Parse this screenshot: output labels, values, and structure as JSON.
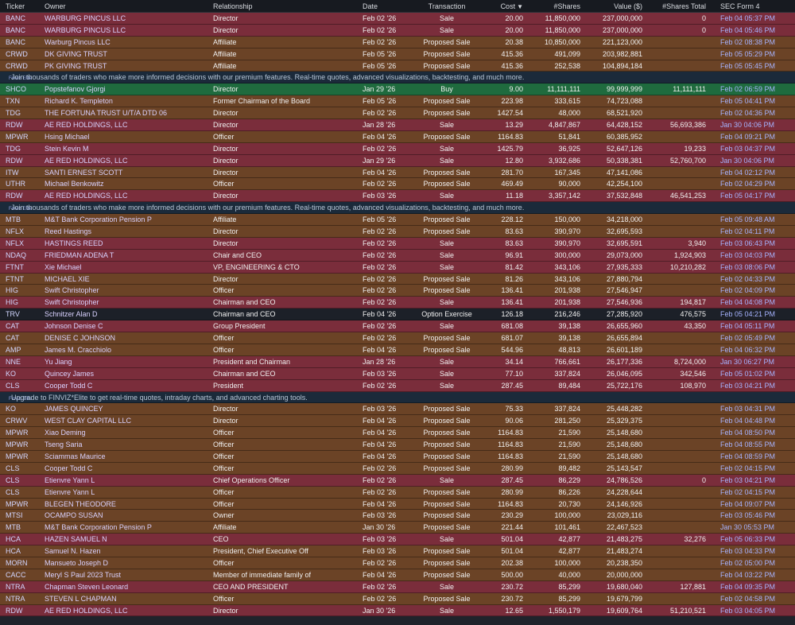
{
  "columns": {
    "ticker": "Ticker",
    "owner": "Owner",
    "relationship": "Relationship",
    "date": "Date",
    "transaction": "Transaction",
    "cost": "Cost",
    "shares": "#Shares",
    "value": "Value ($)",
    "shares_total": "#Shares Total",
    "sec": "SEC Form 4"
  },
  "colors": {
    "sale": "#7a2d3b",
    "proposed_sale": "#6b4326",
    "buy": "#1f6b3e",
    "option_exercise": "#1c2028"
  },
  "sort_icon": "sort-desc-icon",
  "rows": [
    {
      "kind": "sale",
      "ticker": "BANC",
      "owner": "WARBURG PINCUS LLC",
      "rel": "Director",
      "date": "Feb 02 '26",
      "trans": "Sale",
      "cost": "20.00",
      "shares": "11,850,000",
      "value": "237,000,000",
      "total": "0",
      "sec": "Feb 04 05:37 PM"
    },
    {
      "kind": "sale",
      "ticker": "BANC",
      "owner": "WARBURG PINCUS LLC",
      "rel": "Director",
      "date": "Feb 02 '26",
      "trans": "Sale",
      "cost": "20.00",
      "shares": "11,850,000",
      "value": "237,000,000",
      "total": "0",
      "sec": "Feb 04 05:46 PM"
    },
    {
      "kind": "prop",
      "ticker": "BANC",
      "owner": "Warburg Pincus LLC",
      "rel": "Affiliate",
      "date": "Feb 02 '26",
      "trans": "Proposed Sale",
      "cost": "20.38",
      "shares": "10,850,000",
      "value": "221,123,000",
      "total": "",
      "sec": "Feb 02 08:38 PM"
    },
    {
      "kind": "prop",
      "ticker": "CRWD",
      "owner": "DK GIVING TRUST",
      "rel": "Affiliate",
      "date": "Feb 05 '26",
      "trans": "Proposed Sale",
      "cost": "415.36",
      "shares": "491,099",
      "value": "203,982,881",
      "total": "",
      "sec": "Feb 05 05:29 PM"
    },
    {
      "kind": "prop",
      "ticker": "CRWD",
      "owner": "PK GIVING TRUST",
      "rel": "Affiliate",
      "date": "Feb 05 '26",
      "trans": "Proposed Sale",
      "cost": "415.36",
      "shares": "252,538",
      "value": "104,894,184",
      "total": "",
      "sec": "Feb 05 05:45 PM"
    },
    {
      "kind": "promo",
      "text": "Join thousands of traders who make more informed decisions with our premium features. Real-time quotes, advanced visualizations, backtesting, and much more.",
      "elite": "Finviz Elite"
    },
    {
      "kind": "buy",
      "ticker": "SHCO",
      "owner": "Popstefanov Gjorgi",
      "rel": "Director",
      "date": "Jan 29 '26",
      "trans": "Buy",
      "cost": "9.00",
      "shares": "11,111,111",
      "value": "99,999,999",
      "total": "11,111,111",
      "sec": "Feb 02 06:59 PM"
    },
    {
      "kind": "prop",
      "ticker": "TXN",
      "owner": "Richard K. Templeton",
      "rel": "Former Chairman of the Board",
      "date": "Feb 05 '26",
      "trans": "Proposed Sale",
      "cost": "223.98",
      "shares": "333,615",
      "value": "74,723,088",
      "total": "",
      "sec": "Feb 05 04:41 PM"
    },
    {
      "kind": "prop",
      "ticker": "TDG",
      "owner": "THE FORTUNA TRUST U/T/A DTD 06",
      "rel": "Director",
      "date": "Feb 02 '26",
      "trans": "Proposed Sale",
      "cost": "1427.54",
      "shares": "48,000",
      "value": "68,521,920",
      "total": "",
      "sec": "Feb 02 04:36 PM"
    },
    {
      "kind": "sale",
      "ticker": "RDW",
      "owner": "AE RED HOLDINGS, LLC",
      "rel": "Director",
      "date": "Jan 28 '26",
      "trans": "Sale",
      "cost": "13.29",
      "shares": "4,847,867",
      "value": "64,428,152",
      "total": "56,693,386",
      "sec": "Jan 30 04:06 PM"
    },
    {
      "kind": "prop",
      "ticker": "MPWR",
      "owner": "Hsing Michael",
      "rel": "Officer",
      "date": "Feb 04 '26",
      "trans": "Proposed Sale",
      "cost": "1164.83",
      "shares": "51,841",
      "value": "60,385,952",
      "total": "",
      "sec": "Feb 04 09:21 PM"
    },
    {
      "kind": "sale",
      "ticker": "TDG",
      "owner": "Stein Kevin M",
      "rel": "Director",
      "date": "Feb 02 '26",
      "trans": "Sale",
      "cost": "1425.79",
      "shares": "36,925",
      "value": "52,647,126",
      "total": "19,233",
      "sec": "Feb 03 04:37 PM"
    },
    {
      "kind": "sale",
      "ticker": "RDW",
      "owner": "AE RED HOLDINGS, LLC",
      "rel": "Director",
      "date": "Jan 29 '26",
      "trans": "Sale",
      "cost": "12.80",
      "shares": "3,932,686",
      "value": "50,338,381",
      "total": "52,760,700",
      "sec": "Jan 30 04:06 PM"
    },
    {
      "kind": "prop",
      "ticker": "ITW",
      "owner": "SANTI ERNEST SCOTT",
      "rel": "Director",
      "date": "Feb 04 '26",
      "trans": "Proposed Sale",
      "cost": "281.70",
      "shares": "167,345",
      "value": "47,141,086",
      "total": "",
      "sec": "Feb 04 02:12 PM"
    },
    {
      "kind": "prop",
      "ticker": "UTHR",
      "owner": "Michael Benkowitz",
      "rel": "Officer",
      "date": "Feb 02 '26",
      "trans": "Proposed Sale",
      "cost": "469.49",
      "shares": "90,000",
      "value": "42,254,100",
      "total": "",
      "sec": "Feb 02 04:29 PM"
    },
    {
      "kind": "sale",
      "ticker": "RDW",
      "owner": "AE RED HOLDINGS, LLC",
      "rel": "Director",
      "date": "Feb 03 '26",
      "trans": "Sale",
      "cost": "11.18",
      "shares": "3,357,142",
      "value": "37,532,848",
      "total": "46,541,253",
      "sec": "Feb 05 04:17 PM"
    },
    {
      "kind": "promo",
      "text": "Join thousands of traders who make more informed decisions with our premium features. Real-time quotes, advanced visualizations, backtesting, and much more.",
      "elite": "Finviz Elite"
    },
    {
      "kind": "prop",
      "ticker": "MTB",
      "owner": "M&T Bank Corporation Pension P",
      "rel": "Affiliate",
      "date": "Feb 05 '26",
      "trans": "Proposed Sale",
      "cost": "228.12",
      "shares": "150,000",
      "value": "34,218,000",
      "total": "",
      "sec": "Feb 05 09:48 AM"
    },
    {
      "kind": "prop",
      "ticker": "NFLX",
      "owner": "Reed Hastings",
      "rel": "Director",
      "date": "Feb 02 '26",
      "trans": "Proposed Sale",
      "cost": "83.63",
      "shares": "390,970",
      "value": "32,695,593",
      "total": "",
      "sec": "Feb 02 04:11 PM"
    },
    {
      "kind": "sale",
      "ticker": "NFLX",
      "owner": "HASTINGS REED",
      "rel": "Director",
      "date": "Feb 02 '26",
      "trans": "Sale",
      "cost": "83.63",
      "shares": "390,970",
      "value": "32,695,591",
      "total": "3,940",
      "sec": "Feb 03 06:43 PM"
    },
    {
      "kind": "sale",
      "ticker": "NDAQ",
      "owner": "FRIEDMAN ADENA T",
      "rel": "Chair and CEO",
      "date": "Feb 02 '26",
      "trans": "Sale",
      "cost": "96.91",
      "shares": "300,000",
      "value": "29,073,000",
      "total": "1,924,903",
      "sec": "Feb 03 04:03 PM"
    },
    {
      "kind": "sale",
      "ticker": "FTNT",
      "owner": "Xie Michael",
      "rel": "VP, ENGINEERING & CTO",
      "date": "Feb 02 '26",
      "trans": "Sale",
      "cost": "81.42",
      "shares": "343,106",
      "value": "27,935,333",
      "total": "10,210,282",
      "sec": "Feb 03 08:06 PM"
    },
    {
      "kind": "prop",
      "ticker": "FTNT",
      "owner": "MICHAEL XIE",
      "rel": "Director",
      "date": "Feb 02 '26",
      "trans": "Proposed Sale",
      "cost": "81.26",
      "shares": "343,106",
      "value": "27,880,794",
      "total": "",
      "sec": "Feb 02 04:33 PM"
    },
    {
      "kind": "prop",
      "ticker": "HIG",
      "owner": "Swift Christopher",
      "rel": "Officer",
      "date": "Feb 02 '26",
      "trans": "Proposed Sale",
      "cost": "136.41",
      "shares": "201,938",
      "value": "27,546,947",
      "total": "",
      "sec": "Feb 02 04:09 PM"
    },
    {
      "kind": "sale",
      "ticker": "HIG",
      "owner": "Swift Christopher",
      "rel": "Chairman and CEO",
      "date": "Feb 02 '26",
      "trans": "Sale",
      "cost": "136.41",
      "shares": "201,938",
      "value": "27,546,936",
      "total": "194,817",
      "sec": "Feb 04 04:08 PM"
    },
    {
      "kind": "opt",
      "ticker": "TRV",
      "owner": "Schnitzer Alan D",
      "rel": "Chairman and CEO",
      "date": "Feb 04 '26",
      "trans": "Option Exercise",
      "cost": "126.18",
      "shares": "216,246",
      "value": "27,285,920",
      "total": "476,575",
      "sec": "Feb 05 04:21 PM"
    },
    {
      "kind": "sale",
      "ticker": "CAT",
      "owner": "Johnson Denise C",
      "rel": "Group President",
      "date": "Feb 02 '26",
      "trans": "Sale",
      "cost": "681.08",
      "shares": "39,138",
      "value": "26,655,960",
      "total": "43,350",
      "sec": "Feb 04 05:11 PM"
    },
    {
      "kind": "prop",
      "ticker": "CAT",
      "owner": "DENISE C JOHNSON",
      "rel": "Officer",
      "date": "Feb 02 '26",
      "trans": "Proposed Sale",
      "cost": "681.07",
      "shares": "39,138",
      "value": "26,655,894",
      "total": "",
      "sec": "Feb 02 05:49 PM"
    },
    {
      "kind": "prop",
      "ticker": "AMP",
      "owner": "James M. Cracchiolo",
      "rel": "Officer",
      "date": "Feb 04 '26",
      "trans": "Proposed Sale",
      "cost": "544.96",
      "shares": "48,813",
      "value": "26,601,189",
      "total": "",
      "sec": "Feb 04 06:32 PM"
    },
    {
      "kind": "sale",
      "ticker": "NNE",
      "owner": "Yu Jiang",
      "rel": "President and Chairman",
      "date": "Jan 28 '26",
      "trans": "Sale",
      "cost": "34.14",
      "shares": "766,661",
      "value": "26,177,336",
      "total": "8,724,000",
      "sec": "Jan 30 06:27 PM"
    },
    {
      "kind": "sale",
      "ticker": "KO",
      "owner": "Quincey James",
      "rel": "Chairman and CEO",
      "date": "Feb 03 '26",
      "trans": "Sale",
      "cost": "77.10",
      "shares": "337,824",
      "value": "26,046,095",
      "total": "342,546",
      "sec": "Feb 05 01:02 PM"
    },
    {
      "kind": "sale",
      "ticker": "CLS",
      "owner": "Cooper Todd C",
      "rel": "President",
      "date": "Feb 02 '26",
      "trans": "Sale",
      "cost": "287.45",
      "shares": "89,484",
      "value": "25,722,176",
      "total": "108,970",
      "sec": "Feb 03 04:21 PM"
    },
    {
      "kind": "promo",
      "text": "Upgrade to FINVIZ*Elite to get real-time quotes, intraday charts, and advanced charting tools.",
      "elite": "Finviz Elite"
    },
    {
      "kind": "prop",
      "ticker": "KO",
      "owner": "JAMES QUINCEY",
      "rel": "Director",
      "date": "Feb 03 '26",
      "trans": "Proposed Sale",
      "cost": "75.33",
      "shares": "337,824",
      "value": "25,448,282",
      "total": "",
      "sec": "Feb 03 04:31 PM"
    },
    {
      "kind": "prop",
      "ticker": "CRWV",
      "owner": "WEST CLAY CAPITAL LLC",
      "rel": "Director",
      "date": "Feb 04 '26",
      "trans": "Proposed Sale",
      "cost": "90.06",
      "shares": "281,250",
      "value": "25,329,375",
      "total": "",
      "sec": "Feb 04 04:48 PM"
    },
    {
      "kind": "prop",
      "ticker": "MPWR",
      "owner": "Xiao Deming",
      "rel": "Officer",
      "date": "Feb 04 '26",
      "trans": "Proposed Sale",
      "cost": "1164.83",
      "shares": "21,590",
      "value": "25,148,680",
      "total": "",
      "sec": "Feb 04 08:50 PM"
    },
    {
      "kind": "prop",
      "ticker": "MPWR",
      "owner": "Tseng Saria",
      "rel": "Officer",
      "date": "Feb 04 '26",
      "trans": "Proposed Sale",
      "cost": "1164.83",
      "shares": "21,590",
      "value": "25,148,680",
      "total": "",
      "sec": "Feb 04 08:55 PM"
    },
    {
      "kind": "prop",
      "ticker": "MPWR",
      "owner": "Sciammas Maurice",
      "rel": "Officer",
      "date": "Feb 04 '26",
      "trans": "Proposed Sale",
      "cost": "1164.83",
      "shares": "21,590",
      "value": "25,148,680",
      "total": "",
      "sec": "Feb 04 08:59 PM"
    },
    {
      "kind": "prop",
      "ticker": "CLS",
      "owner": "Cooper Todd C",
      "rel": "Officer",
      "date": "Feb 02 '26",
      "trans": "Proposed Sale",
      "cost": "280.99",
      "shares": "89,482",
      "value": "25,143,547",
      "total": "",
      "sec": "Feb 02 04:15 PM"
    },
    {
      "kind": "sale",
      "ticker": "CLS",
      "owner": "Etienvre Yann L",
      "rel": "Chief Operations Officer",
      "date": "Feb 02 '26",
      "trans": "Sale",
      "cost": "287.45",
      "shares": "86,229",
      "value": "24,786,526",
      "total": "0",
      "sec": "Feb 03 04:21 PM"
    },
    {
      "kind": "prop",
      "ticker": "CLS",
      "owner": "Etienvre Yann L",
      "rel": "Officer",
      "date": "Feb 02 '26",
      "trans": "Proposed Sale",
      "cost": "280.99",
      "shares": "86,226",
      "value": "24,228,644",
      "total": "",
      "sec": "Feb 02 04:15 PM"
    },
    {
      "kind": "prop",
      "ticker": "MPWR",
      "owner": "BLEGEN THEODORE",
      "rel": "Officer",
      "date": "Feb 04 '26",
      "trans": "Proposed Sale",
      "cost": "1164.83",
      "shares": "20,730",
      "value": "24,146,926",
      "total": "",
      "sec": "Feb 04 09:07 PM"
    },
    {
      "kind": "prop",
      "ticker": "MTSI",
      "owner": "OCAMPO SUSAN",
      "rel": "Owner",
      "date": "Feb 03 '26",
      "trans": "Proposed Sale",
      "cost": "230.29",
      "shares": "100,000",
      "value": "23,029,116",
      "total": "",
      "sec": "Feb 03 05:46 PM"
    },
    {
      "kind": "prop",
      "ticker": "MTB",
      "owner": "M&T Bank Corporation Pension P",
      "rel": "Affiliate",
      "date": "Jan 30 '26",
      "trans": "Proposed Sale",
      "cost": "221.44",
      "shares": "101,461",
      "value": "22,467,523",
      "total": "",
      "sec": "Jan 30 05:53 PM"
    },
    {
      "kind": "sale",
      "ticker": "HCA",
      "owner": "HAZEN SAMUEL N",
      "rel": "CEO",
      "date": "Feb 03 '26",
      "trans": "Sale",
      "cost": "501.04",
      "shares": "42,877",
      "value": "21,483,275",
      "total": "32,276",
      "sec": "Feb 05 06:33 PM"
    },
    {
      "kind": "prop",
      "ticker": "HCA",
      "owner": "Samuel N. Hazen",
      "rel": "President, Chief Executive Off",
      "date": "Feb 03 '26",
      "trans": "Proposed Sale",
      "cost": "501.04",
      "shares": "42,877",
      "value": "21,483,274",
      "total": "",
      "sec": "Feb 03 04:33 PM"
    },
    {
      "kind": "prop",
      "ticker": "MORN",
      "owner": "Mansueto Joseph D",
      "rel": "Officer",
      "date": "Feb 02 '26",
      "trans": "Proposed Sale",
      "cost": "202.38",
      "shares": "100,000",
      "value": "20,238,350",
      "total": "",
      "sec": "Feb 02 05:00 PM"
    },
    {
      "kind": "prop",
      "ticker": "CACC",
      "owner": "Meryl S Paul 2023 Trust",
      "rel": "Member of immediate family of",
      "date": "Feb 04 '26",
      "trans": "Proposed Sale",
      "cost": "500.00",
      "shares": "40,000",
      "value": "20,000,000",
      "total": "",
      "sec": "Feb 04 03:22 PM"
    },
    {
      "kind": "sale",
      "ticker": "NTRA",
      "owner": "Chapman Steven Leonard",
      "rel": "CEO AND PRESIDENT",
      "date": "Feb 02 '26",
      "trans": "Sale",
      "cost": "230.72",
      "shares": "85,299",
      "value": "19,680,040",
      "total": "127,881",
      "sec": "Feb 04 09:35 PM"
    },
    {
      "kind": "prop",
      "ticker": "NTRA",
      "owner": "STEVEN L CHAPMAN",
      "rel": "Officer",
      "date": "Feb 02 '26",
      "trans": "Proposed Sale",
      "cost": "230.72",
      "shares": "85,299",
      "value": "19,679,799",
      "total": "",
      "sec": "Feb 02 04:58 PM"
    },
    {
      "kind": "sale",
      "ticker": "RDW",
      "owner": "AE RED HOLDINGS, LLC",
      "rel": "Director",
      "date": "Jan 30 '26",
      "trans": "Sale",
      "cost": "12.65",
      "shares": "1,550,179",
      "value": "19,609,764",
      "total": "51,210,521",
      "sec": "Feb 03 04:05 PM"
    }
  ]
}
